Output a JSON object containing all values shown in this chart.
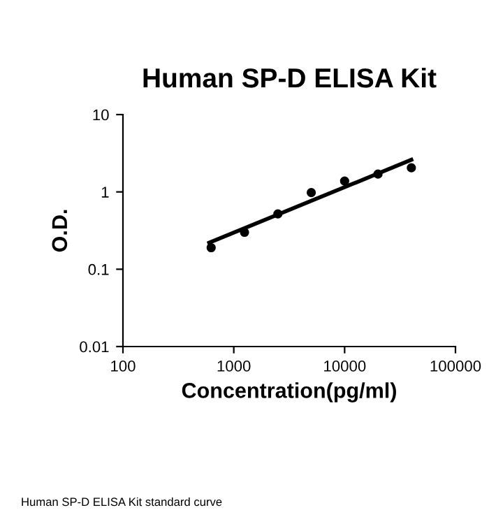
{
  "chart_data": {
    "type": "scatter",
    "title": "Human SP-D ELISA Kit",
    "xlabel": "Concentration(pg/ml)",
    "ylabel": "O.D.",
    "log": "xy",
    "series": [
      {
        "x": [
          625,
          1250,
          2500,
          5000,
          10000,
          20000,
          40000
        ],
        "values": [
          0.19,
          0.3,
          0.52,
          0.98,
          1.38,
          1.7,
          2.05
        ],
        "color": "#000000",
        "marker": "circle"
      },
      {
        "type": "line",
        "x": [
          600,
          40000
        ],
        "values": [
          0.22,
          2.6
        ],
        "color": "#000000",
        "marker": "none"
      }
    ],
    "xlim": [
      100,
      100000
    ],
    "xticks": [
      100,
      1000,
      10000,
      100000
    ],
    "ylim": [
      0.01,
      10
    ],
    "yticks": [
      0.01,
      0.1,
      1,
      10
    ],
    "grid": false,
    "legend": false,
    "annotations": [
      "Human SP-D ELISA Kit standard curve"
    ]
  }
}
